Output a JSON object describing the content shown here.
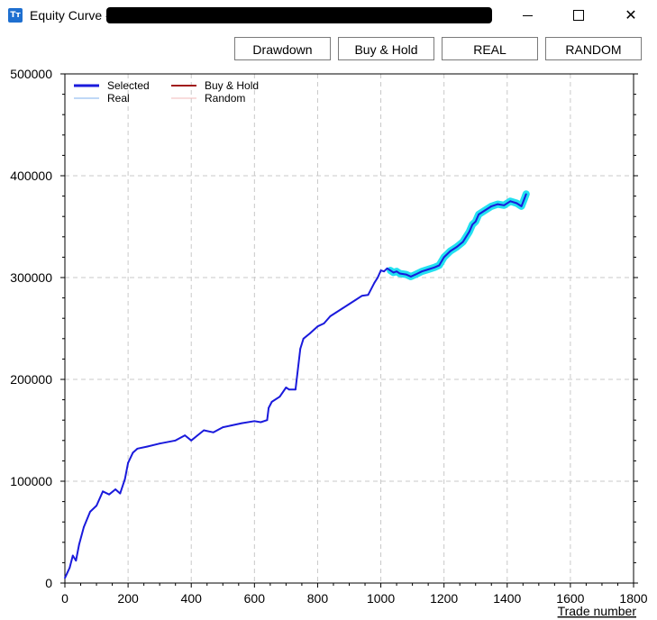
{
  "window": {
    "title": "Equity Curve -",
    "icon": "app-logo-icon",
    "controls": [
      "minimize",
      "maximize",
      "close"
    ]
  },
  "toolbar": {
    "drawdown_label": "Drawdown",
    "buyhold_label": "Buy & Hold",
    "real_label": "REAL",
    "random_label": "RANDOM"
  },
  "colors": {
    "selected": "#1a1adc",
    "highlight": "#22e0f0",
    "buy_hold": "#a11b1b",
    "real": "#7fb0ef",
    "random": "#f0b8b8",
    "grid": "#c8c8c8"
  },
  "chart_data": {
    "type": "line",
    "title": "",
    "xlabel": "Trade number",
    "ylabel": "",
    "xlim": [
      0,
      1800
    ],
    "ylim": [
      0,
      500000
    ],
    "xticks": [
      0,
      200,
      400,
      600,
      800,
      1000,
      1200,
      1400,
      1600,
      1800
    ],
    "yticks": [
      0,
      100000,
      200000,
      300000,
      400000,
      500000
    ],
    "grid": true,
    "legend_position": "top-left",
    "legend": [
      {
        "name": "Selected",
        "color": "#1a1adc"
      },
      {
        "name": "Buy & Hold",
        "color": "#a11b1b"
      },
      {
        "name": "Real",
        "color": "#7fb0ef"
      },
      {
        "name": "Random",
        "color": "#f0b8b8"
      }
    ],
    "series": [
      {
        "name": "Selected",
        "x": [
          0,
          15,
          25,
          35,
          45,
          60,
          80,
          100,
          120,
          140,
          160,
          175,
          190,
          200,
          215,
          230,
          260,
          300,
          350,
          380,
          400,
          420,
          440,
          470,
          500,
          530,
          560,
          600,
          620,
          640,
          645,
          655,
          680,
          700,
          710,
          730,
          745,
          755,
          775,
          800,
          820,
          840,
          860,
          880,
          900,
          920,
          940,
          960,
          980,
          990,
          1000,
          1010,
          1020,
          1030,
          1040,
          1050,
          1060,
          1080,
          1095,
          1110,
          1130,
          1150,
          1170,
          1185,
          1200,
          1220,
          1240,
          1260,
          1280,
          1290,
          1300,
          1310,
          1330,
          1350,
          1370,
          1390,
          1410,
          1430,
          1445,
          1455,
          1460
        ],
        "y": [
          5000,
          15000,
          27000,
          22000,
          38000,
          55000,
          70000,
          76000,
          90000,
          87000,
          92000,
          88000,
          102000,
          118000,
          128000,
          132000,
          134000,
          137000,
          140000,
          145000,
          140000,
          145000,
          150000,
          148000,
          153000,
          155000,
          157000,
          159000,
          158000,
          160000,
          172000,
          178000,
          183000,
          192000,
          190000,
          190000,
          230000,
          240000,
          245000,
          252000,
          255000,
          262000,
          266000,
          270000,
          274000,
          278000,
          282000,
          283000,
          295000,
          300000,
          307000,
          306000,
          309000,
          307000,
          305000,
          306000,
          304000,
          303000,
          301000,
          303000,
          306000,
          308000,
          310000,
          312000,
          320000,
          326000,
          330000,
          335000,
          345000,
          352000,
          355000,
          362000,
          366000,
          370000,
          372000,
          371000,
          375000,
          373000,
          370000,
          378000,
          382000
        ]
      },
      {
        "name": "Selected highlight",
        "x": [
          1030,
          1040,
          1050,
          1060,
          1080,
          1095,
          1110,
          1130,
          1150,
          1170,
          1185,
          1200,
          1220,
          1240,
          1260,
          1280,
          1290,
          1300,
          1310,
          1330,
          1350,
          1370,
          1390,
          1410,
          1430,
          1445,
          1455,
          1460
        ],
        "y": [
          307000,
          305000,
          306000,
          304000,
          303000,
          301000,
          303000,
          306000,
          308000,
          310000,
          312000,
          320000,
          326000,
          330000,
          335000,
          345000,
          352000,
          355000,
          362000,
          366000,
          370000,
          372000,
          371000,
          375000,
          373000,
          370000,
          378000,
          382000
        ]
      }
    ]
  }
}
